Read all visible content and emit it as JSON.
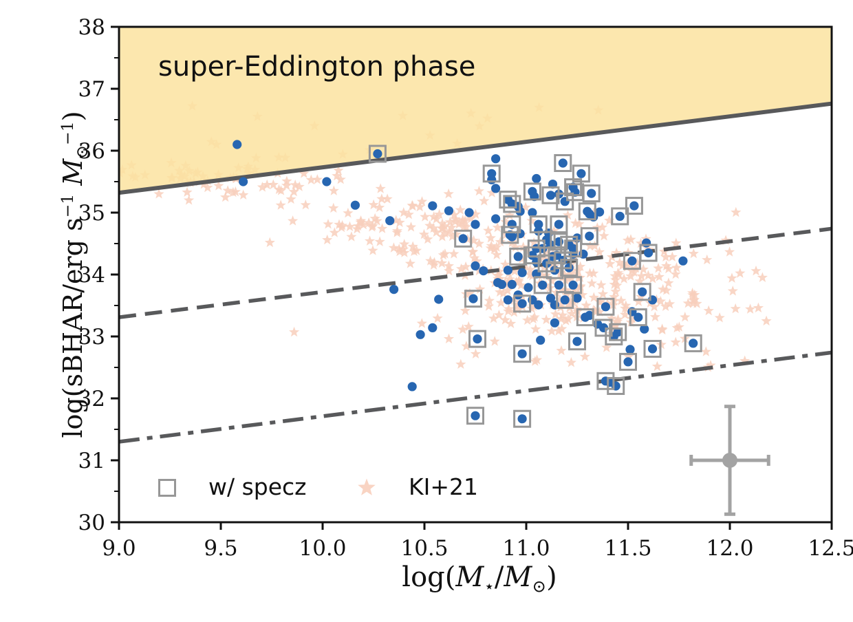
{
  "colors": {
    "background": "#ffffff",
    "star_pink": "#f8cfbc",
    "circle_blue": "#2766b1",
    "square_gray": "#979797",
    "line_gray": "#58595b",
    "region_yellow_base": "#fbe3a0",
    "region_yellow_alpha": 0.85,
    "errorbar_gray": "#a3a3a3",
    "axis_black": "#111111"
  },
  "chart_data": {
    "type": "scatter",
    "annotation": "super-Eddington phase",
    "xlabel": "log(M⋆/M⊙)",
    "ylabel": "log(sBHAR/erg s−1 M⊙−1)",
    "xlabel_parts": [
      {
        "t": "log(",
        "s": "r"
      },
      {
        "t": "M",
        "s": "i"
      },
      {
        "t": "⋆",
        "s": "sub"
      },
      {
        "t": "/",
        "s": "r"
      },
      {
        "t": "M",
        "s": "i"
      },
      {
        "t": "⊙",
        "s": "sub"
      },
      {
        "t": ")",
        "s": "r"
      }
    ],
    "ylabel_parts": [
      {
        "t": "log(sBHAR/erg s",
        "s": "r"
      },
      {
        "t": "−1",
        "s": "sup"
      },
      {
        "t": " ",
        "s": "r"
      },
      {
        "t": "M",
        "s": "i"
      },
      {
        "t": "⊙",
        "s": "sub"
      },
      {
        "t": "−1",
        "s": "sup"
      },
      {
        "t": ")",
        "s": "r"
      }
    ],
    "xlim": [
      9.0,
      12.5
    ],
    "ylim": [
      30,
      38
    ],
    "xticks": [
      9.0,
      9.5,
      10.0,
      10.5,
      11.0,
      11.5,
      12.0,
      12.5
    ],
    "xtick_labels": [
      "9.0",
      "9.5",
      "10.0",
      "10.5",
      "11.0",
      "11.5",
      "12.0",
      "12.5"
    ],
    "yticks": [
      30,
      31,
      32,
      33,
      34,
      35,
      36,
      37,
      38
    ],
    "ytick_labels": [
      "30",
      "31",
      "32",
      "33",
      "34",
      "35",
      "36",
      "37",
      "38"
    ],
    "ytick_minor_step": 0.5,
    "grid": false,
    "legend_position": "lower-left-inside",
    "legend": [
      {
        "marker": "square",
        "label": "w/ specz"
      },
      {
        "marker": "star",
        "label": "KI+21"
      }
    ],
    "lines": [
      {
        "name": "eddington-limit-solid",
        "style": "solid",
        "x": [
          9.0,
          12.5
        ],
        "y": [
          35.32,
          36.76
        ]
      },
      {
        "name": "one-percent-eddington-dashed",
        "style": "dashed",
        "x": [
          9.0,
          12.5
        ],
        "y": [
          33.31,
          34.74
        ]
      },
      {
        "name": "sub-eddington-dashdot",
        "style": "dashdot",
        "x": [
          9.0,
          12.5
        ],
        "y": [
          31.3,
          32.74
        ]
      }
    ],
    "shaded_region": {
      "name": "super-eddington-region",
      "above_line": "eddington-limit-solid",
      "to_y": 38
    },
    "error_bar_example": {
      "x": 12.0,
      "y": 31.0,
      "xerr": 0.19,
      "yerr": 0.87
    },
    "series": [
      {
        "name": "agn-sample",
        "marker": "circle",
        "note": "third element 1 = has spectroscopic redshift (gray square)",
        "points": [
          [
            9.58,
            36.1,
            0
          ],
          [
            9.61,
            35.5,
            0
          ],
          [
            10.02,
            35.5,
            0
          ],
          [
            10.27,
            35.95,
            1
          ],
          [
            10.16,
            35.12,
            0
          ],
          [
            10.33,
            34.87,
            0
          ],
          [
            10.54,
            35.11,
            0
          ],
          [
            10.62,
            35.03,
            0
          ],
          [
            10.72,
            35.0,
            0
          ],
          [
            10.75,
            34.81,
            0
          ],
          [
            10.85,
            34.9,
            0
          ],
          [
            10.85,
            35.87,
            0
          ],
          [
            10.83,
            35.63,
            1
          ],
          [
            10.83,
            35.53,
            0
          ],
          [
            10.85,
            35.39,
            0
          ],
          [
            11.18,
            35.8,
            1
          ],
          [
            11.27,
            35.63,
            1
          ],
          [
            11.23,
            35.41,
            1
          ],
          [
            11.24,
            35.33,
            1
          ],
          [
            11.32,
            35.31,
            1
          ],
          [
            11.13,
            35.46,
            0
          ],
          [
            11.03,
            35.34,
            1
          ],
          [
            11.04,
            35.26,
            0
          ],
          [
            11.12,
            35.28,
            1
          ],
          [
            11.16,
            35.3,
            0
          ],
          [
            11.19,
            35.18,
            1
          ],
          [
            10.91,
            35.21,
            1
          ],
          [
            10.93,
            35.14,
            1
          ],
          [
            10.96,
            35.1,
            0
          ],
          [
            10.97,
            35.02,
            0
          ],
          [
            11.03,
            35.0,
            0
          ],
          [
            11.05,
            35.55,
            0
          ],
          [
            11.3,
            35.02,
            1
          ],
          [
            11.31,
            34.98,
            0
          ],
          [
            11.36,
            35.01,
            0
          ],
          [
            11.33,
            34.93,
            0
          ],
          [
            11.53,
            35.11,
            1
          ],
          [
            11.46,
            34.94,
            1
          ],
          [
            10.69,
            34.58,
            1
          ],
          [
            10.92,
            34.64,
            1
          ],
          [
            10.93,
            34.61,
            0
          ],
          [
            10.97,
            34.66,
            0
          ],
          [
            11.06,
            34.81,
            1
          ],
          [
            11.06,
            34.7,
            0
          ],
          [
            11.11,
            34.67,
            0
          ],
          [
            11.16,
            34.81,
            1
          ],
          [
            11.1,
            34.56,
            1
          ],
          [
            11.12,
            34.48,
            0
          ],
          [
            11.16,
            34.53,
            1
          ],
          [
            11.21,
            34.48,
            1
          ],
          [
            11.25,
            34.59,
            0
          ],
          [
            11.31,
            34.62,
            1
          ],
          [
            10.93,
            34.81,
            1
          ],
          [
            11.05,
            34.42,
            1
          ],
          [
            11.08,
            34.42,
            0
          ],
          [
            11.15,
            34.31,
            1
          ],
          [
            11.23,
            34.42,
            1
          ],
          [
            11.6,
            34.35,
            1
          ],
          [
            10.96,
            34.29,
            1
          ],
          [
            11.03,
            34.31,
            1
          ],
          [
            11.05,
            34.2,
            0
          ],
          [
            11.1,
            34.18,
            1
          ],
          [
            11.13,
            34.29,
            0
          ],
          [
            11.18,
            34.23,
            1
          ],
          [
            11.23,
            34.33,
            0
          ],
          [
            11.28,
            34.33,
            0
          ],
          [
            11.52,
            34.22,
            1
          ],
          [
            11.59,
            34.51,
            0
          ],
          [
            11.77,
            34.22,
            0
          ],
          [
            10.91,
            34.07,
            0
          ],
          [
            10.98,
            34.03,
            0
          ],
          [
            11.05,
            34.01,
            0
          ],
          [
            11.14,
            34.07,
            1
          ],
          [
            11.21,
            34.11,
            1
          ],
          [
            10.75,
            34.14,
            0
          ],
          [
            10.79,
            34.06,
            0
          ],
          [
            10.86,
            33.87,
            0
          ],
          [
            10.88,
            33.84,
            0
          ],
          [
            10.93,
            33.84,
            0
          ],
          [
            11.01,
            33.79,
            0
          ],
          [
            11.08,
            33.83,
            1
          ],
          [
            11.16,
            33.83,
            0
          ],
          [
            11.23,
            33.83,
            1
          ],
          [
            10.35,
            33.76,
            0
          ],
          [
            10.57,
            33.6,
            0
          ],
          [
            10.74,
            33.61,
            1
          ],
          [
            10.96,
            33.67,
            0
          ],
          [
            10.91,
            33.59,
            0
          ],
          [
            11.03,
            33.59,
            0
          ],
          [
            11.12,
            33.62,
            0
          ],
          [
            11.19,
            33.59,
            1
          ],
          [
            11.25,
            33.62,
            0
          ],
          [
            10.98,
            33.53,
            1
          ],
          [
            11.06,
            33.51,
            0
          ],
          [
            11.14,
            33.51,
            0
          ],
          [
            11.57,
            33.72,
            1
          ],
          [
            11.62,
            33.59,
            0
          ],
          [
            11.39,
            33.48,
            1
          ],
          [
            11.52,
            33.4,
            0
          ],
          [
            11.55,
            33.31,
            1
          ],
          [
            11.29,
            33.31,
            1
          ],
          [
            11.31,
            33.34,
            0
          ],
          [
            11.35,
            33.2,
            0
          ],
          [
            11.38,
            33.14,
            1
          ],
          [
            11.14,
            33.22,
            0
          ],
          [
            11.45,
            33.07,
            1
          ],
          [
            11.43,
            33.0,
            1
          ],
          [
            11.58,
            33.12,
            0
          ],
          [
            10.54,
            33.14,
            0
          ],
          [
            10.48,
            33.03,
            0
          ],
          [
            10.76,
            32.96,
            1
          ],
          [
            11.07,
            32.94,
            0
          ],
          [
            10.98,
            32.72,
            1
          ],
          [
            11.25,
            32.92,
            1
          ],
          [
            11.51,
            32.79,
            0
          ],
          [
            11.5,
            32.59,
            1
          ],
          [
            11.62,
            32.8,
            1
          ],
          [
            11.82,
            32.89,
            1
          ],
          [
            11.39,
            32.28,
            1
          ],
          [
            11.44,
            32.2,
            1
          ],
          [
            11.41,
            32.26,
            0
          ],
          [
            10.44,
            32.19,
            0
          ],
          [
            10.75,
            31.72,
            1
          ],
          [
            10.98,
            31.67,
            1
          ]
        ]
      },
      {
        "name": "ki21-comparison",
        "marker": "star",
        "points_explicit": [
          [
            9.36,
            36.72
          ],
          [
            9.68,
            36.55
          ],
          [
            9.96,
            36.4
          ],
          [
            9.86,
            33.07
          ],
          [
            10.62,
            32.96
          ],
          [
            10.84,
            33.29
          ],
          [
            12.01,
            33.94
          ],
          [
            12.1,
            33.44
          ],
          [
            11.95,
            33.3
          ],
          [
            12.16,
            33.95
          ],
          [
            11.98,
            34.55
          ],
          [
            12.05,
            34.02
          ],
          [
            12.14,
            33.46
          ]
        ],
        "clusters": [
          {
            "type": "gauss",
            "n": 55,
            "cx": 9.62,
            "cy": 35.5,
            "sx": 0.3,
            "sy": 0.16,
            "xr": [
              9.02,
              10.3
            ],
            "yr": [
              35.0,
              35.97
            ]
          },
          {
            "type": "band_above_line",
            "n": 24,
            "x0": 9.0,
            "x1": 11.45,
            "bias": 1.6,
            "spread": 0.3,
            "min_off": 0.07,
            "max_off": 0.85
          },
          {
            "type": "gauss",
            "n": 120,
            "cx": 10.5,
            "cy": 34.72,
            "sx": 0.33,
            "sy": 0.27,
            "xr": [
              9.55,
              11.35
            ],
            "yr": [
              33.25,
              35.55
            ]
          },
          {
            "type": "gauss",
            "n": 270,
            "cx": 11.28,
            "cy": 33.78,
            "sx": 0.31,
            "sy": 0.42,
            "xr": [
              10.45,
              12.18
            ],
            "yr": [
              32.45,
              35.05
            ]
          },
          {
            "type": "uniform",
            "n": 18,
            "xr": [
              10.4,
              12.1
            ],
            "yr": [
              32.5,
              33.6
            ]
          }
        ],
        "seed": 1337
      }
    ]
  }
}
